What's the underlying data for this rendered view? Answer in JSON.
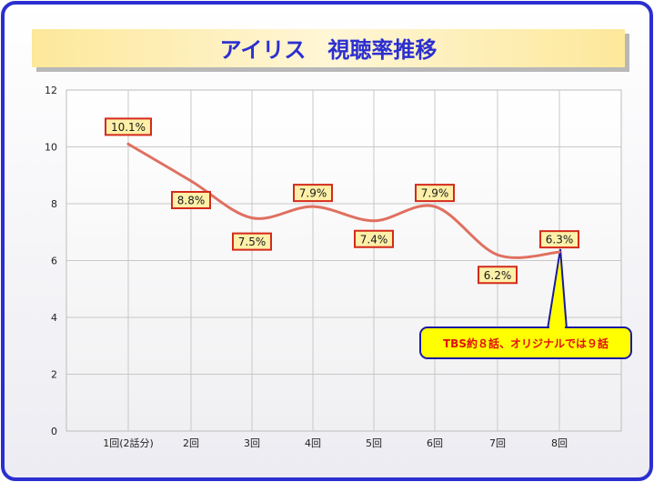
{
  "colors": {
    "border": "#2b2fd0",
    "title_text": "#2b2fd0",
    "title_bg": "#fde89a",
    "line": "#e07060",
    "label_border": "#d42a1a",
    "label_bg": "#fdf0a8",
    "callout_bg": "#ffff00",
    "callout_border": "#1a1aa0",
    "callout_text": "#e01010"
  },
  "chart_data": {
    "type": "line",
    "title": "アイリス　視聴率推移",
    "categories": [
      "1回(2話分)",
      "2回",
      "3回",
      "4回",
      "5回",
      "6回",
      "7回",
      "8回"
    ],
    "values": [
      10.1,
      8.8,
      7.5,
      7.9,
      7.4,
      7.9,
      6.2,
      6.3
    ],
    "data_labels": [
      "10.1%",
      "8.8%",
      "7.5%",
      "7.9%",
      "7.4%",
      "7.9%",
      "6.2%",
      "6.3%"
    ],
    "ylim": [
      0,
      12
    ],
    "yticks": [
      "0",
      "2",
      "4",
      "6",
      "8",
      "10",
      "12"
    ],
    "grid": true,
    "annotation": "TBS約８話、オリジナルでは９話"
  }
}
